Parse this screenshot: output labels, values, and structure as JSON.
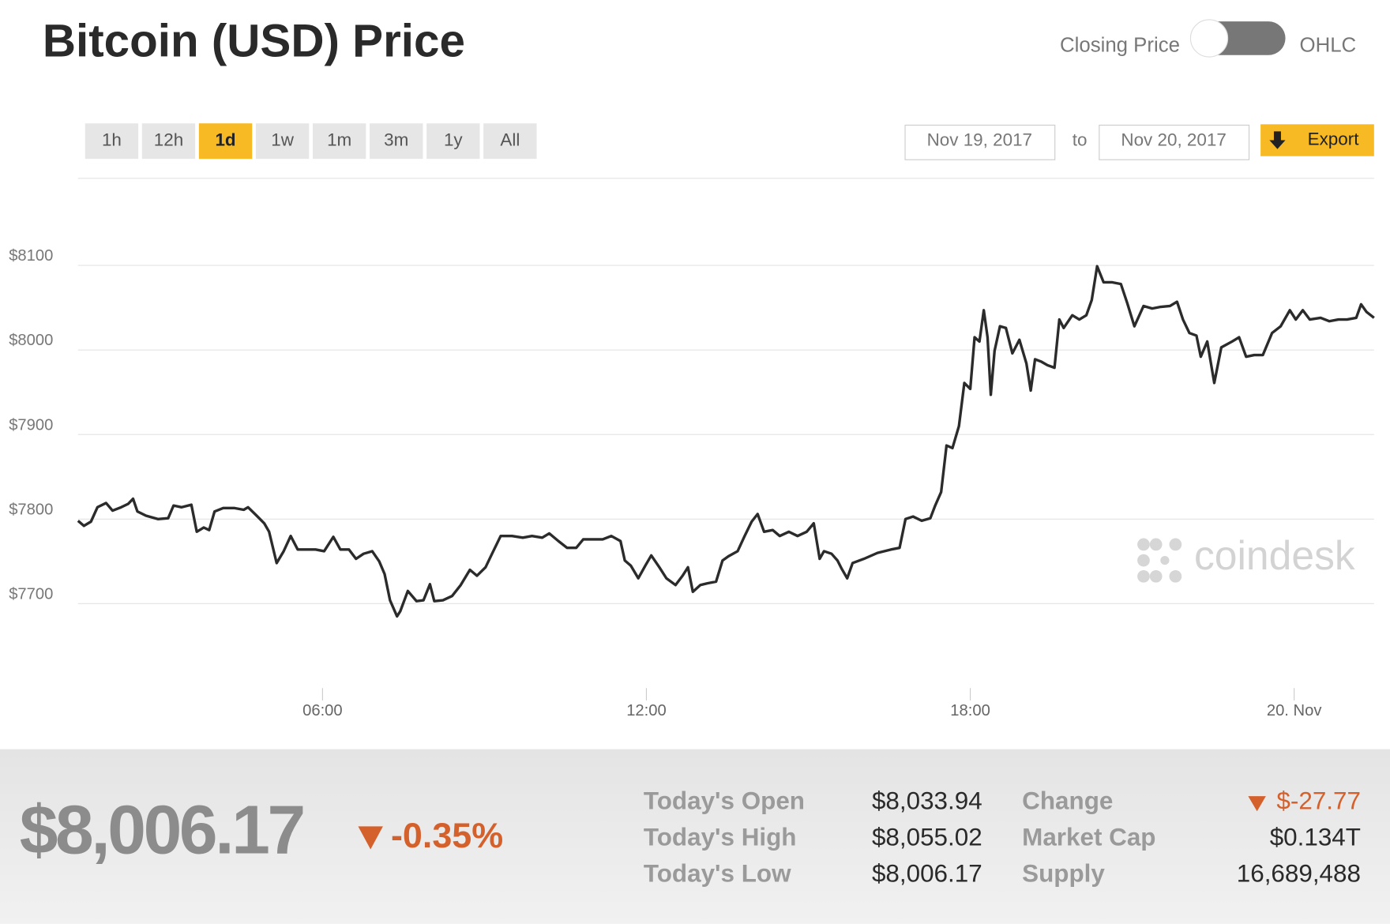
{
  "header": {
    "title": "Bitcoin (USD) Price",
    "toggle_left": "Closing Price",
    "toggle_right": "OHLC"
  },
  "ranges": {
    "options": [
      "1h",
      "12h",
      "1d",
      "1w",
      "1m",
      "3m",
      "1y",
      "All"
    ],
    "active": "1d"
  },
  "date_range": {
    "from": "Nov 19, 2017",
    "separator": "to",
    "to": "Nov 20, 2017"
  },
  "export_label": "Export",
  "watermark": "coindesk",
  "chart_data": {
    "type": "line",
    "color": "#2b2b2b",
    "grid": true,
    "xlim": [
      1.47,
      25.48
    ],
    "xticks": [
      {
        "value": 6,
        "label": "06:00"
      },
      {
        "value": 12,
        "label": "12:00"
      },
      {
        "value": 18,
        "label": "18:00"
      },
      {
        "value": 24,
        "label": "20. Nov"
      }
    ],
    "ylim": [
      7596,
      8204
    ],
    "yticks": [
      {
        "value": 7700,
        "label": "$7700"
      },
      {
        "value": 7800,
        "label": "$7800"
      },
      {
        "value": 7900,
        "label": "$7900"
      },
      {
        "value": 8000,
        "label": "$8000"
      },
      {
        "value": 8100,
        "label": "$8100"
      }
    ],
    "x": [
      1.47,
      1.58,
      1.71,
      1.83,
      1.99,
      2.11,
      2.27,
      2.4,
      2.49,
      2.57,
      2.73,
      2.95,
      3.14,
      3.24,
      3.39,
      3.57,
      3.67,
      3.8,
      3.9,
      4.0,
      4.16,
      4.37,
      4.54,
      4.62,
      4.78,
      4.92,
      5.01,
      5.15,
      5.28,
      5.41,
      5.54,
      5.69,
      5.87,
      6.03,
      6.2,
      6.33,
      6.49,
      6.62,
      6.76,
      6.92,
      7.05,
      7.15,
      7.25,
      7.38,
      7.44,
      7.58,
      7.74,
      7.87,
      7.99,
      8.07,
      8.23,
      8.4,
      8.56,
      8.73,
      8.86,
      9.02,
      9.14,
      9.3,
      9.51,
      9.71,
      9.88,
      10.07,
      10.2,
      10.37,
      10.53,
      10.7,
      10.83,
      11.02,
      11.19,
      11.35,
      11.52,
      11.6,
      11.71,
      11.85,
      11.98,
      12.09,
      12.24,
      12.37,
      12.54,
      12.67,
      12.77,
      12.86,
      13.0,
      13.13,
      13.29,
      13.41,
      13.52,
      13.69,
      13.82,
      13.95,
      14.06,
      14.18,
      14.34,
      14.47,
      14.64,
      14.8,
      14.97,
      15.1,
      15.21,
      15.29,
      15.43,
      15.54,
      15.62,
      15.72,
      15.82,
      16.03,
      16.28,
      16.53,
      16.69,
      16.8,
      16.94,
      17.1,
      17.26,
      17.35,
      17.46,
      17.56,
      17.67,
      17.79,
      17.89,
      18.0,
      18.08,
      18.17,
      18.25,
      18.32,
      18.38,
      18.45,
      18.55,
      18.66,
      18.78,
      18.91,
      19.04,
      19.12,
      19.2,
      19.32,
      19.43,
      19.56,
      19.65,
      19.73,
      19.89,
      20.02,
      20.15,
      20.25,
      20.35,
      20.47,
      20.63,
      20.79,
      20.91,
      21.04,
      21.21,
      21.37,
      21.53,
      21.7,
      21.83,
      21.94,
      22.06,
      22.19,
      22.27,
      22.39,
      22.52,
      22.65,
      22.85,
      22.98,
      23.11,
      23.26,
      23.42,
      23.59,
      23.75,
      23.92,
      24.03,
      24.16,
      24.29,
      24.49,
      24.65,
      24.82,
      24.98,
      25.15,
      25.24,
      25.34,
      25.48
    ],
    "values": [
      7798,
      7792,
      7797,
      7814,
      7819,
      7810,
      7814,
      7818,
      7824,
      7809,
      7804,
      7800,
      7801,
      7816,
      7814,
      7817,
      7785,
      7790,
      7787,
      7809,
      7813,
      7813,
      7811,
      7814,
      7804,
      7795,
      7785,
      7748,
      7762,
      7780,
      7764,
      7764,
      7764,
      7762,
      7779,
      7764,
      7764,
      7753,
      7759,
      7762,
      7750,
      7735,
      7704,
      7685,
      7691,
      7715,
      7703,
      7704,
      7723,
      7703,
      7704,
      7709,
      7722,
      7740,
      7733,
      7743,
      7759,
      7780,
      7780,
      7778,
      7780,
      7778,
      7783,
      7774,
      7766,
      7766,
      7776,
      7776,
      7776,
      7780,
      7774,
      7751,
      7745,
      7730,
      7745,
      7757,
      7743,
      7730,
      7722,
      7733,
      7743,
      7714,
      7722,
      7724,
      7726,
      7751,
      7756,
      7762,
      7780,
      7797,
      7806,
      7785,
      7787,
      7780,
      7785,
      7780,
      7785,
      7795,
      7753,
      7762,
      7759,
      7751,
      7741,
      7730,
      7748,
      7753,
      7760,
      7764,
      7766,
      7800,
      7803,
      7798,
      7801,
      7816,
      7832,
      7887,
      7884,
      7910,
      7961,
      7954,
      8015,
      8010,
      8047,
      8015,
      7947,
      7999,
      8028,
      8026,
      7996,
      8012,
      7984,
      7952,
      7989,
      7986,
      7982,
      7979,
      8036,
      8026,
      8041,
      8036,
      8041,
      8059,
      8099,
      8080,
      8080,
      8078,
      8055,
      8028,
      8052,
      8049,
      8051,
      8052,
      8057,
      8036,
      8020,
      8017,
      7992,
      8010,
      7961,
      8003,
      8010,
      8015,
      7992,
      7994,
      7994,
      8020,
      8028,
      8047,
      8036,
      8047,
      8036,
      8038,
      8034,
      8036,
      8036,
      8038,
      8054,
      8045,
      8038
    ]
  },
  "summary": {
    "price": "$8,006.17",
    "change_percent": "-0.35%",
    "stats": [
      [
        "Today's Open",
        "$8,033.94",
        "Change",
        "$-27.77"
      ],
      [
        "Today's High",
        "$8,055.02",
        "Market Cap",
        "$0.134T"
      ],
      [
        "Today's Low",
        "$8,006.17",
        "Supply",
        "16,689,488"
      ]
    ]
  }
}
